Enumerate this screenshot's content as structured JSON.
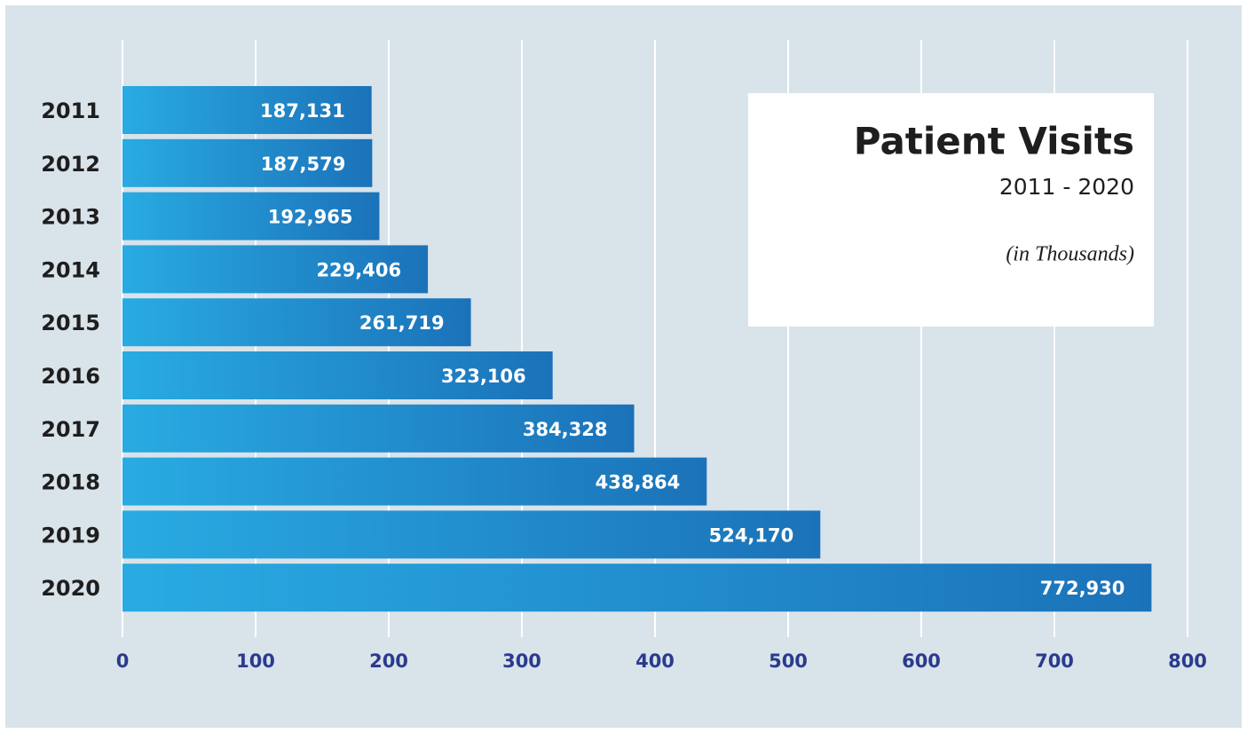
{
  "chart_data": {
    "type": "hbar",
    "title": "Patient Visits",
    "subtitle": "2011 - 2020",
    "note": "(in Thousands)",
    "categories": [
      "2011",
      "2012",
      "2013",
      "2014",
      "2015",
      "2016",
      "2017",
      "2018",
      "2019",
      "2020"
    ],
    "values": [
      187.131,
      187.579,
      192.965,
      229.406,
      261.719,
      323.106,
      384.328,
      438.864,
      524.17,
      772.93
    ],
    "value_labels": [
      "187,131",
      "187,579",
      "192,965",
      "229,406",
      "261,719",
      "323,106",
      "384,328",
      "438,864",
      "524,170",
      "772,930"
    ],
    "gradient": [
      "#29abe2",
      "#1b72b9"
    ],
    "xlim": [
      0,
      800
    ],
    "xticks": [
      0,
      100,
      200,
      300,
      400,
      500,
      600,
      700,
      800
    ],
    "grid": true
  }
}
